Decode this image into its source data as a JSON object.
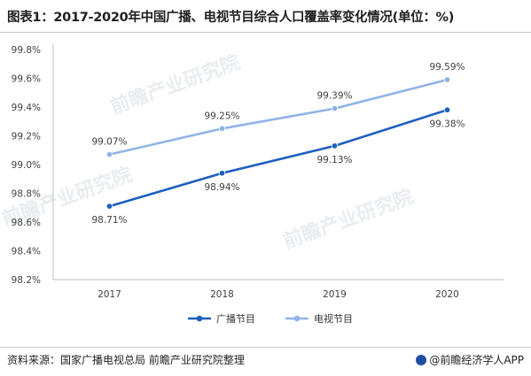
{
  "title": "图表1：2017-2020年中国广播、电视节目综合人口覆盖率变化情况(单位：%)",
  "footer": {
    "source": "资料来源：国家广播电视总局 前瞻产业研究院整理",
    "brand": "@前瞻经济学人APP"
  },
  "watermark": {
    "text": "前瞻产业研究院"
  },
  "colors": {
    "radio": "#1f5fbf",
    "tv": "#8fb3e6",
    "grid": "#dddddd",
    "axis": "#bfbfbf",
    "label": "#404040"
  },
  "chart_data": {
    "type": "line",
    "categories": [
      "2017",
      "2018",
      "2019",
      "2020"
    ],
    "ylim": [
      98.2,
      99.8
    ],
    "yticks": [
      "98.2%",
      "98.4%",
      "98.6%",
      "98.8%",
      "99.0%",
      "99.2%",
      "99.4%",
      "99.6%",
      "99.8%"
    ],
    "grid": false,
    "legend": "bottom-center",
    "series": [
      {
        "name": "广播节目",
        "values": [
          98.71,
          98.94,
          99.13,
          99.38
        ],
        "labels": [
          "98.71%",
          "98.94%",
          "99.13%",
          "99.38%"
        ],
        "label_position": "below"
      },
      {
        "name": "电视节目",
        "values": [
          99.07,
          99.25,
          99.39,
          99.59
        ],
        "labels": [
          "99.07%",
          "99.25%",
          "99.39%",
          "99.59%"
        ],
        "label_position": "above"
      }
    ]
  }
}
